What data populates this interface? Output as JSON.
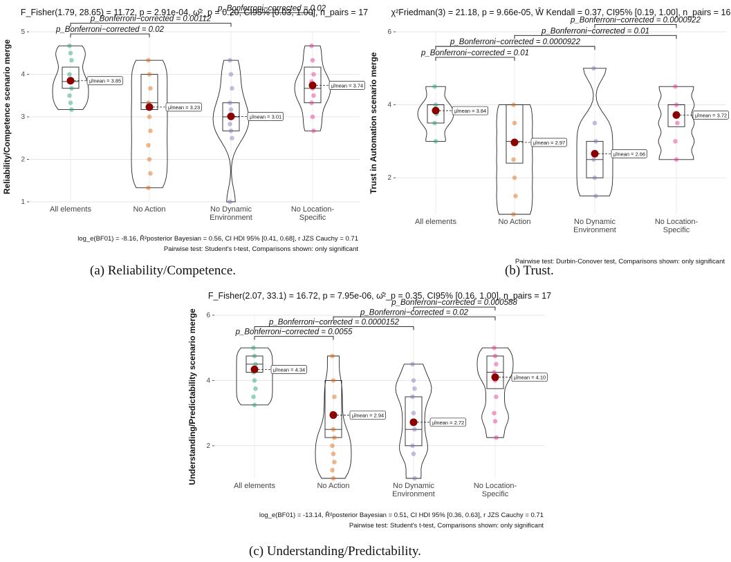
{
  "captions": {
    "a": "(a) Reliability/Competence.",
    "b": "(b) Trust.",
    "c": "(c) Understanding/Predictability."
  },
  "chart_data": [
    {
      "id": "a",
      "type": "violin-box",
      "title": "F_Fisher(1.79, 28.65) = 11.72, p = 2.91e-04, ω̂²_p = 0.20, CI95% [0.03, 1.00], n_pairs = 17",
      "ylabel": "Reliability/Competence scenario merge",
      "xlabel": "",
      "categories": [
        "All elements",
        "No Action",
        "No Dynamic Environment",
        "No Location-Specific"
      ],
      "ylim": [
        1,
        5
      ],
      "yticks": [
        "1",
        "2",
        "3",
        "4",
        "5"
      ],
      "colors": [
        "#1b9e77",
        "#d95f02",
        "#7570b3",
        "#e7298a"
      ],
      "means": [
        3.85,
        3.23,
        3.01,
        3.74
      ],
      "mean_labels": [
        "μ̂mean = 3.85",
        "μ̂mean = 3.23",
        "μ̂mean = 3.01",
        "μ̂mean = 3.74"
      ],
      "points": [
        [
          4.67,
          4.5,
          4.33,
          4.0,
          3.83,
          3.67,
          3.5,
          3.33,
          3.17
        ],
        [
          4.33,
          4.0,
          3.67,
          3.33,
          3.0,
          2.67,
          2.33,
          2.0,
          1.67,
          1.33
        ],
        [
          4.33,
          4.0,
          3.67,
          3.33,
          3.17,
          3.0,
          2.83,
          2.67,
          2.5,
          1.0
        ],
        [
          4.67,
          4.33,
          4.0,
          3.83,
          3.67,
          3.5,
          3.33,
          3.0,
          2.67
        ]
      ],
      "boxes": [
        [
          3.67,
          3.83,
          4.17
        ],
        [
          3.17,
          3.33,
          4.0
        ],
        [
          2.67,
          3.0,
          3.33
        ],
        [
          3.33,
          3.67,
          4.17
        ]
      ],
      "comparisons": [
        {
          "label": "p_Bonferroni−corrected = 0.02",
          "from": 0,
          "to": 1,
          "y": 4.95
        },
        {
          "label": "p_Bonferroni−corrected = 0.00112",
          "from": 0,
          "to": 2,
          "y": 5.2
        },
        {
          "label": "p_Bonferroni−corrected = 0.02",
          "from": 2,
          "to": 3,
          "y": 5.45
        }
      ],
      "footer": [
        "log_e(BF01) = -8.16, R̂²posterior Bayesian = 0.56, CI HDI 95% [0.41, 0.68], r JZS Cauchy = 0.71",
        "Pairwise test: Student's t-test, Comparisons shown: only significant"
      ]
    },
    {
      "id": "b",
      "type": "violin-box",
      "title": "χ²Friedman(3) = 21.18, p = 9.66e-05, Ŵ Kendall = 0.37, CI95% [0.19, 1.00], n_pairs = 16",
      "ylabel": "Trust in Automation scenario merge",
      "xlabel": "",
      "categories": [
        "All elements",
        "No Action",
        "No Dynamic Environment",
        "No Location-Specific"
      ],
      "ylim": [
        1,
        6
      ],
      "yticks": [
        "2",
        "4",
        "6"
      ],
      "colors": [
        "#1b9e77",
        "#d95f02",
        "#7570b3",
        "#e7298a"
      ],
      "means": [
        3.84,
        2.97,
        2.66,
        3.72
      ],
      "mean_labels": [
        "μ̂mean = 3.84",
        "μ̂mean = 2.97",
        "μ̂mean = 2.66",
        "μ̂mean = 3.72"
      ],
      "points": [
        [
          4.5,
          4.0,
          3.75,
          3.5,
          3.0
        ],
        [
          4.0,
          3.5,
          3.0,
          2.5,
          2.0,
          1.5,
          1.0
        ],
        [
          5.0,
          3.5,
          3.0,
          2.5,
          2.0,
          1.5
        ],
        [
          4.5,
          4.0,
          3.5,
          3.0,
          2.5
        ]
      ],
      "boxes": [
        [
          3.5,
          4.0,
          4.0
        ],
        [
          2.4,
          3.0,
          4.0
        ],
        [
          2.0,
          2.5,
          3.0
        ],
        [
          3.4,
          4.0,
          4.0
        ]
      ],
      "comparisons": [
        {
          "label": "p_Bonferroni−corrected = 0.01",
          "from": 0,
          "to": 1,
          "y": 5.3
        },
        {
          "label": "p_Bonferroni−corrected = 0.0000922",
          "from": 0,
          "to": 2,
          "y": 5.6
        },
        {
          "label": "p_Bonferroni−corrected = 0.01",
          "from": 1,
          "to": 3,
          "y": 5.9
        },
        {
          "label": "p_Bonferroni−corrected = 0.0000922",
          "from": 2,
          "to": 3,
          "y": 6.2
        }
      ],
      "footer": [
        "",
        "Pairwise test: Durbin-Conover test, Comparisons shown: only significant"
      ]
    },
    {
      "id": "c",
      "type": "violin-box",
      "title": "F_Fisher(2.07, 33.1) = 16.72, p = 7.95e-06, ω̂²_p = 0.35, CI95% [0.16, 1.00], n_pairs = 17",
      "ylabel": "Understanding/Predictability scenario merge",
      "xlabel": "",
      "categories": [
        "All elements",
        "No Action",
        "No Dynamic Environment",
        "No Location-Specific"
      ],
      "ylim": [
        1,
        6
      ],
      "yticks": [
        "2",
        "4",
        "6"
      ],
      "colors": [
        "#1b9e77",
        "#d95f02",
        "#7570b3",
        "#e7298a"
      ],
      "means": [
        4.34,
        2.94,
        2.72,
        4.1
      ],
      "mean_labels": [
        "μ̂mean = 4.34",
        "μ̂mean = 2.94",
        "μ̂mean = 2.72",
        "μ̂mean = 4.10"
      ],
      "points": [
        [
          5.0,
          4.75,
          4.5,
          4.25,
          4.0,
          3.75,
          3.5,
          3.25
        ],
        [
          4.75,
          4.0,
          3.5,
          3.0,
          2.5,
          2.25,
          2.0,
          1.75,
          1.5,
          1.25,
          1.0
        ],
        [
          4.5,
          4.0,
          3.75,
          3.5,
          3.0,
          2.5,
          2.0,
          1.75,
          1.0
        ],
        [
          5.0,
          4.75,
          4.5,
          4.25,
          4.0,
          3.5,
          3.0,
          2.75,
          2.25
        ]
      ],
      "boxes": [
        [
          4.25,
          4.5,
          4.75
        ],
        [
          2.25,
          2.5,
          4.0
        ],
        [
          2.0,
          2.5,
          3.5
        ],
        [
          3.75,
          4.25,
          4.75
        ]
      ],
      "comparisons": [
        {
          "label": "p_Bonferroni−corrected = 0.0055",
          "from": 0,
          "to": 1,
          "y": 5.35
        },
        {
          "label": "p_Bonferroni−corrected = 0.0000152",
          "from": 0,
          "to": 2,
          "y": 5.65
        },
        {
          "label": "p_Bonferroni−corrected = 0.02",
          "from": 1,
          "to": 3,
          "y": 5.95
        },
        {
          "label": "p_Bonferroni−corrected = 0.000588",
          "from": 2,
          "to": 3,
          "y": 6.25
        }
      ],
      "footer": [
        "log_e(BF01) = -13.14, R̂²posterior Bayesian = 0.51, CI HDI 95% [0.36, 0.63], r JZS Cauchy = 0.71",
        "Pairwise test: Student's t-test, Comparisons shown: only significant"
      ]
    }
  ]
}
